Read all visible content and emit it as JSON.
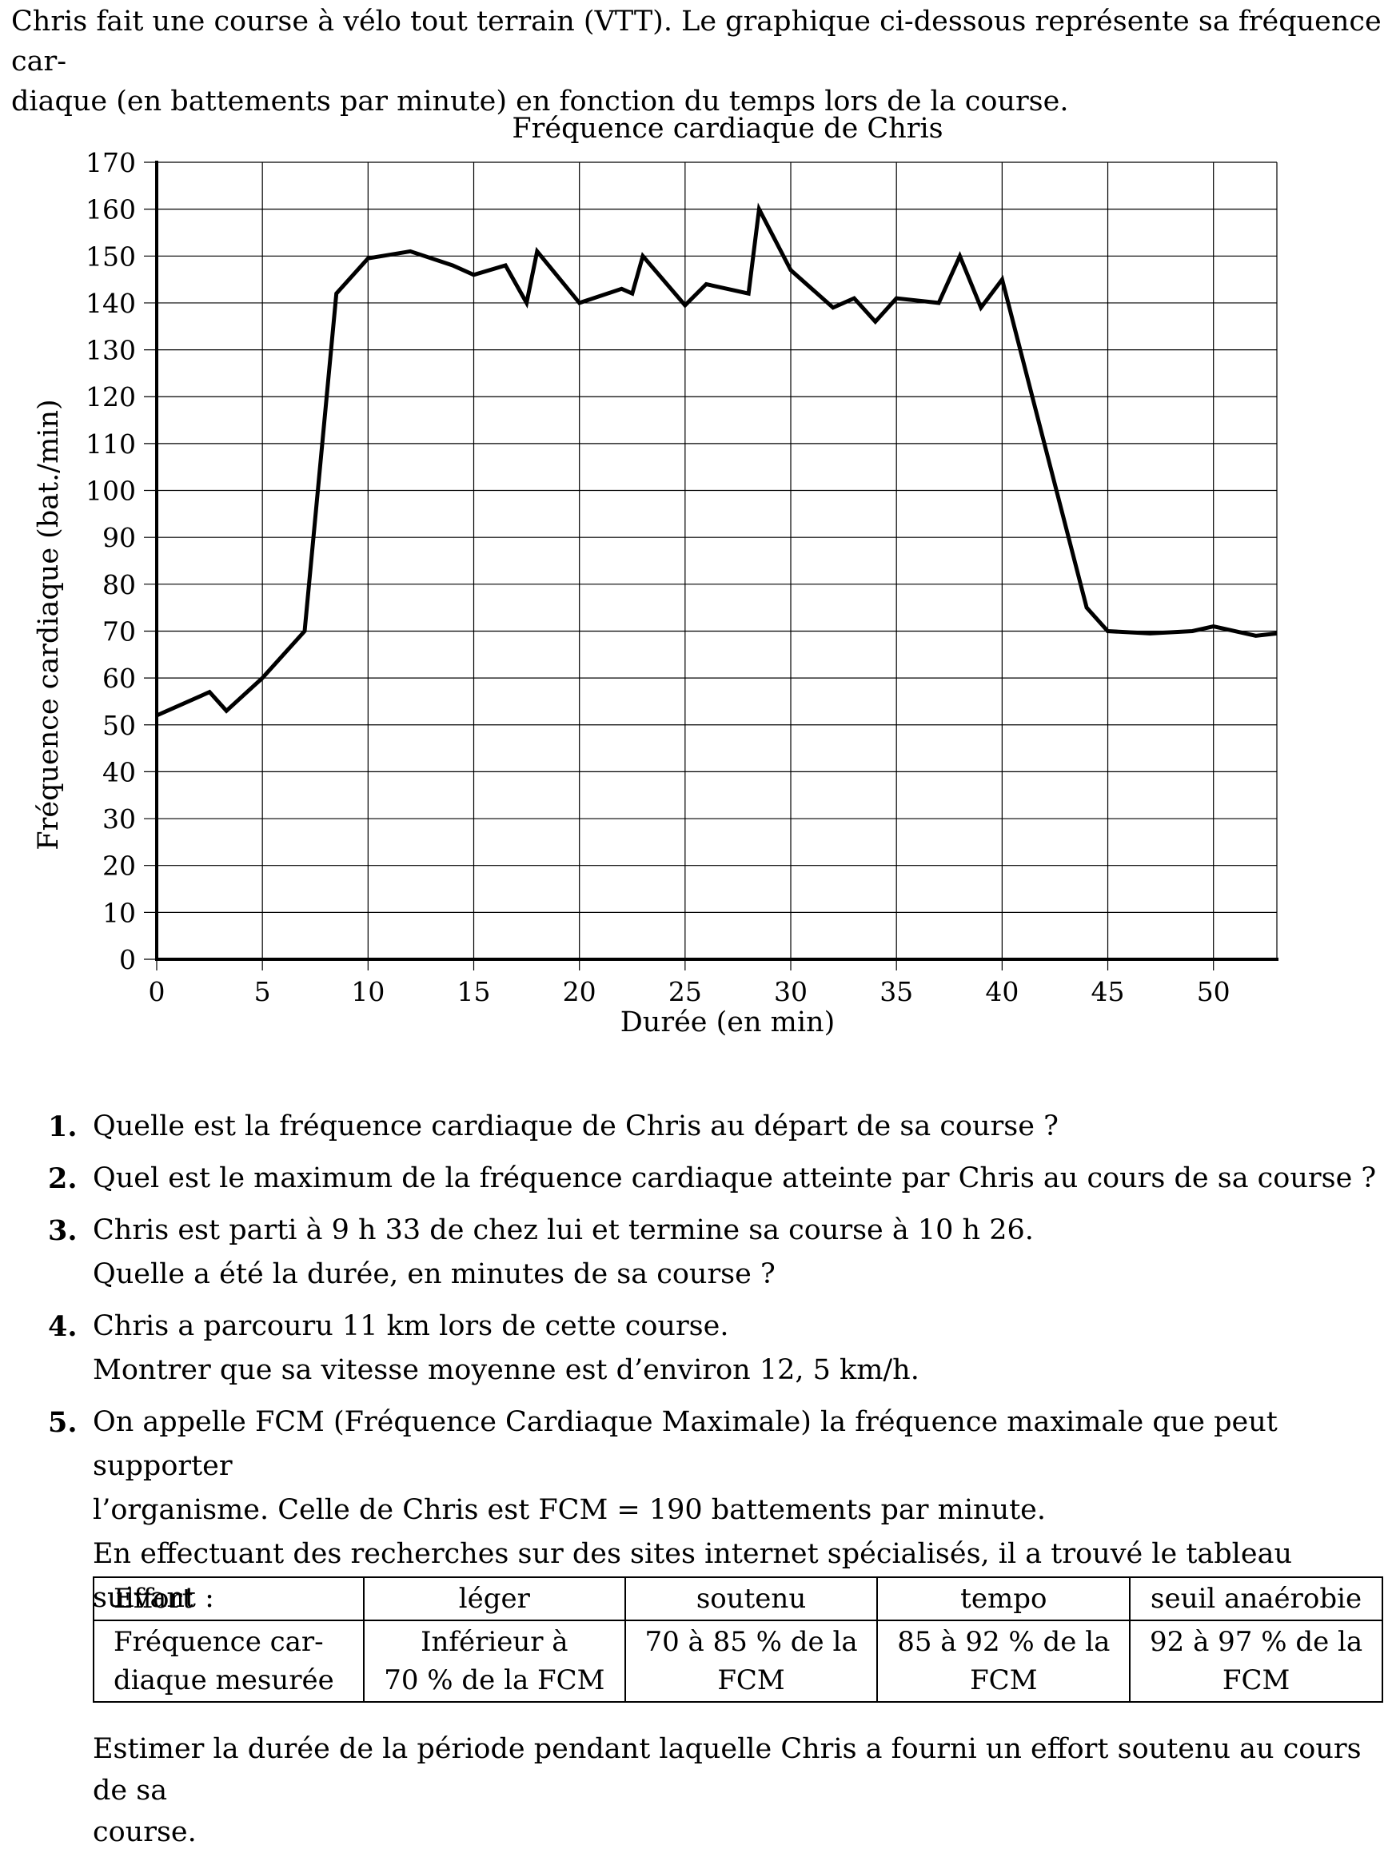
{
  "intro": {
    "line1": "Chris fait une course à vélo tout terrain (VTT). Le graphique ci-dessous représente sa fréquence car-",
    "line2": "diaque (en battements par minute) en fonction du temps lors de la course."
  },
  "chart_data": {
    "type": "line",
    "title": "Fréquence cardiaque de Chris",
    "xlabel": "Durée (en min)",
    "ylabel": "Fréquence cardiaque (bat./min)",
    "xlim": [
      0,
      53
    ],
    "ylim": [
      0,
      170
    ],
    "xticks": [
      "0",
      "5",
      "10",
      "15",
      "20",
      "25",
      "30",
      "35",
      "40",
      "45",
      "50"
    ],
    "yticks": [
      "0",
      "10",
      "20",
      "30",
      "40",
      "50",
      "60",
      "70",
      "80",
      "90",
      "100",
      "110",
      "120",
      "130",
      "140",
      "150",
      "160",
      "170"
    ],
    "grid": true,
    "series": [
      {
        "x": [
          0,
          2.5,
          3.3,
          5,
          7,
          8.5,
          10,
          12,
          14,
          15,
          16.5,
          17.5,
          18,
          20,
          22,
          22.5,
          23,
          25,
          26,
          28,
          28.5,
          30,
          32,
          33,
          34,
          35,
          37,
          38,
          39,
          40,
          42,
          44,
          45,
          47,
          49,
          50,
          52,
          53
        ],
        "y": [
          52,
          57,
          53,
          60,
          70,
          142,
          149.5,
          151,
          148,
          146,
          148,
          140,
          151,
          140,
          143,
          142,
          150,
          139.5,
          144,
          142,
          160,
          147,
          139,
          141,
          136,
          141,
          140,
          150,
          139,
          145,
          110,
          75,
          70,
          69.5,
          70,
          71,
          69,
          69.5
        ]
      }
    ]
  },
  "questions": [
    {
      "num": "1.",
      "lines": [
        "Quelle est la fréquence cardiaque de Chris au départ de sa course ?"
      ]
    },
    {
      "num": "2.",
      "lines": [
        "Quel est le maximum de la fréquence cardiaque atteinte par Chris au cours de sa course ?"
      ]
    },
    {
      "num": "3.",
      "lines": [
        "Chris est parti à 9 h 33 de chez lui et termine sa course à 10 h 26.",
        "Quelle a été la durée, en minutes de sa course ?"
      ]
    },
    {
      "num": "4.",
      "lines": [
        "Chris a parcouru 11 km lors de cette course.",
        "Montrer que sa vitesse moyenne est d’environ 12, 5 km/h."
      ]
    },
    {
      "num": "5.",
      "lines": [
        "On appelle FCM (Fréquence Cardiaque Maximale) la fréquence maximale que peut supporter",
        "l’organisme. Celle de Chris est FCM = 190 battements par minute.",
        "En effectuant des recherches sur des sites internet spécialisés, il a trouvé le tableau suivant :"
      ]
    }
  ],
  "table": {
    "row1": [
      "Effort",
      "léger",
      "soutenu",
      "tempo",
      "seuil anaérobie"
    ],
    "row2": [
      [
        "Fréquence    car-",
        "diaque mesurée"
      ],
      [
        "Inférieur à",
        "70 % de la FCM"
      ],
      [
        "70 à 85 % de la",
        "FCM"
      ],
      [
        "85 à 92 % de la",
        "FCM"
      ],
      [
        "92 à 97 % de la",
        "FCM"
      ]
    ]
  },
  "final_question": {
    "line1": "Estimer la durée de la période pendant laquelle Chris a fourni un effort soutenu au cours de sa",
    "line2": "course."
  }
}
